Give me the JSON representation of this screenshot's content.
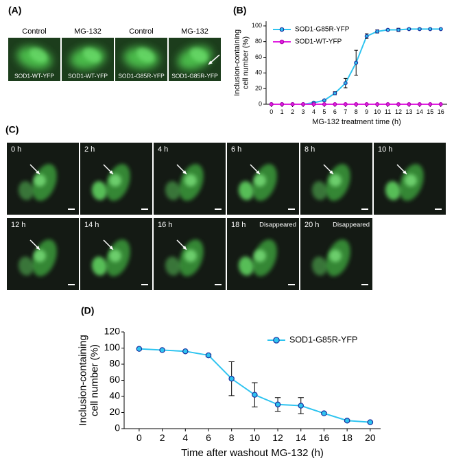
{
  "panel_labels": [
    "(A)",
    "(B)",
    "(C)",
    "(D)"
  ],
  "panel_a": {
    "images": [
      {
        "condition": "Control",
        "label": "SOD1-WT-YFP"
      },
      {
        "condition": "MG-132",
        "label": "SOD1-WT-YFP"
      },
      {
        "condition": "Control",
        "label": "SOD1-G85R-YFP"
      },
      {
        "condition": "MG-132",
        "label": "SOD1-G85R-YFP"
      }
    ]
  },
  "panel_c": {
    "frames": [
      {
        "time": "0 h"
      },
      {
        "time": "2 h"
      },
      {
        "time": "4 h"
      },
      {
        "time": "6 h"
      },
      {
        "time": "8 h"
      },
      {
        "time": "10 h"
      },
      {
        "time": "12 h"
      },
      {
        "time": "14 h"
      },
      {
        "time": "16 h"
      },
      {
        "time": "18 h",
        "note": "Disappeared"
      },
      {
        "time": "20 h",
        "note": "Disappeared"
      }
    ]
  },
  "chart_data": [
    {
      "type": "line",
      "xlabel": "MG-132 treatment time (h)",
      "ylabel": [
        "Inclusion-containing",
        "cell number (%)"
      ],
      "x": [
        0,
        1,
        2,
        3,
        4,
        5,
        6,
        7,
        8,
        9,
        10,
        11,
        12,
        13,
        14,
        15,
        16
      ],
      "xlim": [
        -0.5,
        16.6
      ],
      "xticks": [
        0,
        1,
        2,
        3,
        4,
        5,
        6,
        7,
        8,
        9,
        10,
        11,
        12,
        13,
        14,
        15,
        16
      ],
      "ylim": [
        0,
        106
      ],
      "yticks": [
        0,
        20,
        40,
        60,
        80,
        100
      ],
      "legend": "upper left",
      "series": [
        {
          "name": "SOD1-G85R-YFP",
          "color": "#2ec4f0",
          "marker_color": "#1a30a0",
          "values": [
            0,
            0,
            0,
            0,
            2,
            5,
            14,
            27,
            53,
            87,
            93,
            95,
            95,
            96,
            96,
            96,
            96
          ],
          "errors": [
            0,
            0,
            0,
            0,
            1,
            1,
            2,
            6,
            16,
            3,
            2,
            1,
            2,
            1,
            1,
            1,
            1
          ]
        },
        {
          "name": "SOD1-WT-YFP",
          "color": "#e020e0",
          "marker_color": "#b000b0",
          "values": [
            0,
            0,
            0,
            0,
            0,
            0,
            0,
            0,
            0,
            0,
            0,
            0,
            0,
            0,
            0,
            0,
            0
          ]
        }
      ]
    },
    {
      "type": "line",
      "xlabel": "Time after washout MG-132 (h)",
      "ylabel": [
        "Inclusion-containing",
        "cell number (%)"
      ],
      "x": [
        0,
        2,
        4,
        6,
        8,
        10,
        12,
        14,
        16,
        18,
        20
      ],
      "xlim": [
        -1.3,
        20.9
      ],
      "xticks": [
        0,
        2,
        4,
        6,
        8,
        10,
        12,
        14,
        16,
        18,
        20
      ],
      "ylim": [
        0,
        120
      ],
      "yticks": [
        0,
        20,
        40,
        60,
        80,
        100,
        120
      ],
      "legend": "upper right",
      "series": [
        {
          "name": "SOD1-G85R-YFP",
          "color": "#2ec4f0",
          "marker_color": "#1a30a0",
          "values": [
            99,
            97.5,
            96,
            91,
            62,
            42,
            30,
            28.5,
            19,
            10,
            8
          ],
          "errors": [
            0,
            0,
            0,
            1.5,
            21,
            15,
            8.5,
            10,
            1,
            1,
            0.5
          ]
        }
      ]
    }
  ]
}
